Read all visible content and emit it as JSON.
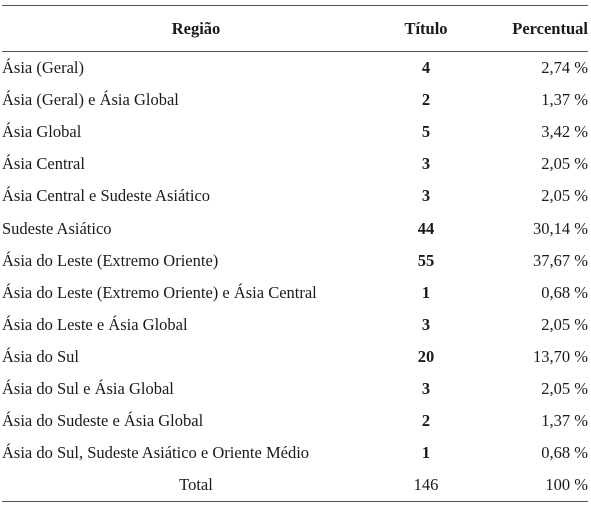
{
  "table": {
    "headers": {
      "regiao": "Região",
      "titulo": "Título",
      "percentual": "Percentual"
    },
    "rows": [
      {
        "regiao": "Ásia (Geral)",
        "titulo": "4",
        "percentual": "2,74 %"
      },
      {
        "regiao": "Ásia (Geral) e Ásia Global",
        "titulo": "2",
        "percentual": "1,37 %"
      },
      {
        "regiao": "Ásia Global",
        "titulo": "5",
        "percentual": "3,42 %"
      },
      {
        "regiao": "Ásia Central",
        "titulo": "3",
        "percentual": "2,05 %"
      },
      {
        "regiao": "Ásia Central e Sudeste Asiático",
        "titulo": "3",
        "percentual": "2,05 %"
      },
      {
        "regiao": "Sudeste Asiático",
        "titulo": "44",
        "percentual": "30,14 %"
      },
      {
        "regiao": "Ásia do Leste (Extremo Oriente)",
        "titulo": "55",
        "percentual": "37,67 %"
      },
      {
        "regiao": "Ásia do Leste (Extremo Oriente) e Ásia Central",
        "titulo": "1",
        "percentual": "0,68 %"
      },
      {
        "regiao": "Ásia do Leste e Ásia Global",
        "titulo": "3",
        "percentual": "2,05 %"
      },
      {
        "regiao": "Ásia do Sul",
        "titulo": "20",
        "percentual": "13,70 %"
      },
      {
        "regiao": "Ásia do Sul e Ásia Global",
        "titulo": "3",
        "percentual": "2,05 %"
      },
      {
        "regiao": "Ásia do Sudeste e Ásia Global",
        "titulo": "2",
        "percentual": "1,37 %"
      },
      {
        "regiao": "Ásia do Sul, Sudeste Asiático e Oriente Médio",
        "titulo": "1",
        "percentual": "0,68 %"
      }
    ],
    "total": {
      "regiao": "Total",
      "titulo": "146",
      "percentual": "100 %"
    }
  }
}
